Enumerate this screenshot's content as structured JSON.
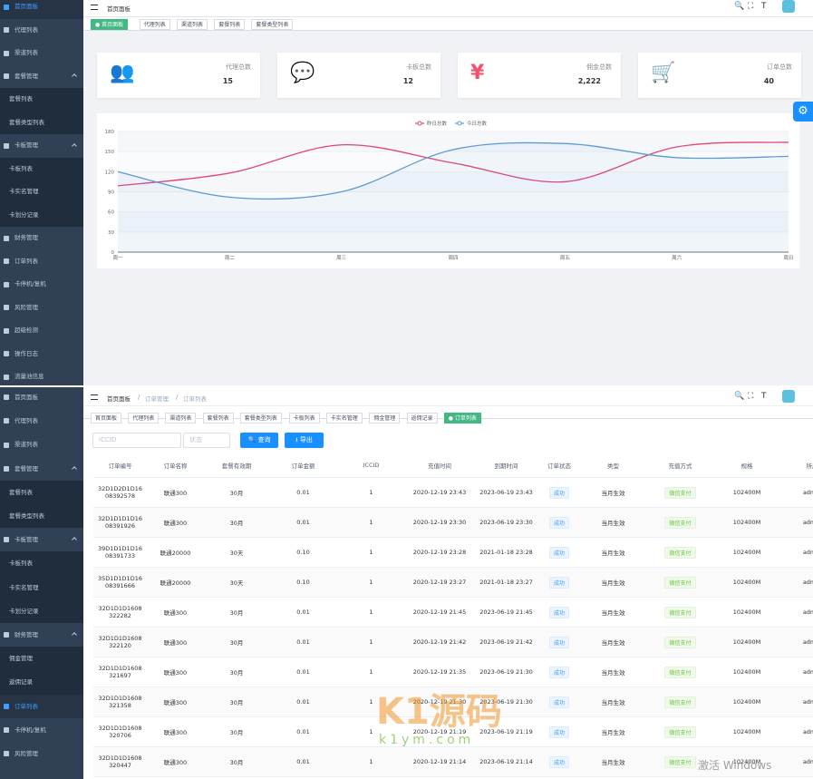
{
  "top": {
    "sidebar": [
      "首页面板",
      "代理列表",
      "渠道列表",
      {
        "label": "套餐管理",
        "children": [
          "套餐列表",
          "套餐类型列表"
        ]
      },
      {
        "label": "卡板管理",
        "children": [
          "卡板列表",
          "卡实名管理",
          "卡划分记录"
        ]
      },
      "财务管理",
      "订单列表",
      "卡停机/复机",
      "风险管理",
      "超级检测",
      "操作日志",
      "流量池信息"
    ],
    "breadcrumb": [
      "首页面板"
    ],
    "tags": [
      "首页面板",
      "代理列表",
      "渠道列表",
      "套餐列表",
      "套餐类型列表"
    ],
    "cards": [
      {
        "label": "代理总数",
        "value": "15"
      },
      {
        "label": "卡板总数",
        "value": "12"
      },
      {
        "label": "佣金总数",
        "value": "2,222"
      },
      {
        "label": "订单总数",
        "value": "40"
      }
    ],
    "chart_data": {
      "type": "line",
      "categories": [
        "周一",
        "周二",
        "周三",
        "周四",
        "周五",
        "周六",
        "周日"
      ],
      "series": [
        {
          "name": "昨日总数",
          "color": "#e0457b",
          "values": [
            99,
            118,
            160,
            133,
            105,
            157,
            164
          ]
        },
        {
          "name": "今日总数",
          "color": "#5b9bd5",
          "values": [
            120,
            82,
            90,
            153,
            162,
            141,
            143
          ]
        }
      ],
      "ylim": [
        0,
        180
      ],
      "yticks": [
        0,
        30,
        60,
        90,
        120,
        150,
        180
      ],
      "grid": true
    }
  },
  "bottom": {
    "sidebar": [
      "首页面板",
      "代理列表",
      "渠道列表",
      {
        "label": "套餐管理",
        "children": [
          "套餐列表",
          "套餐类型列表"
        ]
      },
      {
        "label": "卡板管理",
        "children": [
          "卡板列表",
          "卡实名管理",
          "卡划分记录"
        ]
      },
      {
        "label": "财务管理",
        "children": [
          "佣金管理",
          "返佣记录"
        ]
      },
      "订单列表",
      "卡停机/复机",
      "风险管理"
    ],
    "breadcrumb": [
      "首页面板",
      "订单管理",
      "订单列表"
    ],
    "tags": [
      "首页面板",
      "代理列表",
      "渠道列表",
      "套餐列表",
      "套餐类型列表",
      "卡板列表",
      "卡实名管理",
      "佣金管理",
      "返佣记录",
      "订单列表"
    ],
    "search": {
      "iccid_placeholder": "ICCID",
      "status_placeholder": "状态",
      "query": "查询",
      "export": "导出"
    },
    "table": {
      "headers": [
        "订单编号",
        "订单名称",
        "套餐有效期",
        "订单金额",
        "ICCID",
        "充值时间",
        "到期时间",
        "订单状态",
        "类型",
        "充值方式",
        "规格",
        "所属"
      ],
      "rows": [
        [
          "32D1D2D1D1608392578",
          "联通300",
          "30月",
          "0.01",
          "1",
          "2020-12-19 23:43",
          "2023-06-19 23:43",
          "成功",
          "当月生效",
          "微信支付",
          "102400M",
          "admin"
        ],
        [
          "32D1D1D1D1608391926",
          "联通300",
          "30月",
          "0.01",
          "1",
          "2020-12-19 23:30",
          "2023-06-19 23:30",
          "成功",
          "当月生效",
          "微信支付",
          "102400M",
          "admin"
        ],
        [
          "39D1D1D1D1608391733",
          "联通20000",
          "30天",
          "0.10",
          "1",
          "2020-12-19 23:28",
          "2021-01-18 23:28",
          "成功",
          "当月生效",
          "微信支付",
          "102400M",
          "admin"
        ],
        [
          "35D1D1D1D1608391666",
          "联通20000",
          "30天",
          "0.10",
          "1",
          "2020-12-19 23:27",
          "2021-01-18 23:27",
          "成功",
          "当月生效",
          "微信支付",
          "102400M",
          "admin"
        ],
        [
          "32D1D1D1608322282",
          "联通300",
          "30月",
          "0.01",
          "1",
          "2020-12-19 21:45",
          "2023-06-19 21:45",
          "成功",
          "当月生效",
          "微信支付",
          "102400M",
          "admin"
        ],
        [
          "32D1D1D1608322120",
          "联通300",
          "30月",
          "0.01",
          "1",
          "2020-12-19 21:42",
          "2023-06-19 21:42",
          "成功",
          "当月生效",
          "微信支付",
          "102400M",
          "admin"
        ],
        [
          "32D1D1D1608321697",
          "联通300",
          "30月",
          "0.01",
          "1",
          "2020-12-19 21:35",
          "2023-06-19 21:30",
          "成功",
          "当月生效",
          "微信支付",
          "102400M",
          "admin"
        ],
        [
          "32D1D1D1608321358",
          "联通300",
          "30月",
          "0.01",
          "1",
          "2020-12-19 21:30",
          "2023-06-19 21:30",
          "成功",
          "当月生效",
          "微信支付",
          "102400M",
          "admin"
        ],
        [
          "32D1D1D1608320706",
          "联通300",
          "30月",
          "0.01",
          "1",
          "2020-12-19 21:19",
          "2023-06-19 21:19",
          "成功",
          "当月生效",
          "微信支付",
          "102400M",
          "admin"
        ],
        [
          "32D1D1D1608320447",
          "联通300",
          "30月",
          "0.01",
          "1",
          "2020-12-19 21:14",
          "2023-06-19 21:14",
          "成功",
          "当月生效",
          "微信支付",
          "102400M",
          "admin"
        ]
      ]
    },
    "watermark": [
      "K1源码",
      "k1ym.com"
    ],
    "os_notice": "激活 Windows"
  }
}
